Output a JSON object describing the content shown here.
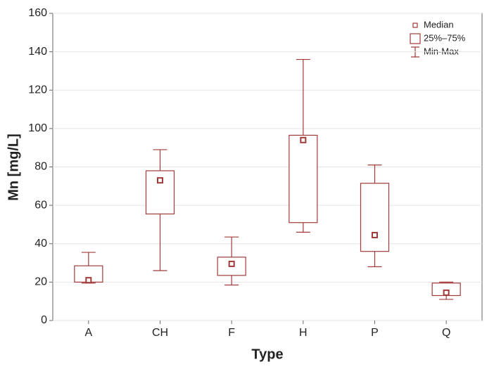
{
  "chart_data": {
    "type": "box",
    "x_label": "Type",
    "y_label": "Mn [mg/L]",
    "categories": [
      "A",
      "CH",
      "F",
      "H",
      "P",
      "Q"
    ],
    "color": "#a23a3a",
    "series": {
      "min": [
        19.5,
        26,
        18.5,
        46,
        28,
        11
      ],
      "q1": [
        20,
        55.5,
        23.5,
        51,
        36,
        13
      ],
      "median": [
        21,
        73,
        29.5,
        94,
        44.5,
        14.5
      ],
      "q3": [
        28.5,
        78,
        33,
        96.5,
        71.5,
        19.5
      ],
      "max": [
        35.5,
        89,
        43.5,
        136,
        81,
        20
      ]
    },
    "ylim": [
      0,
      160
    ],
    "yticks": [
      0,
      20,
      40,
      60,
      80,
      100,
      120,
      140,
      160
    ],
    "grid": true,
    "legend": {
      "position": "upper right",
      "entries": [
        "Median",
        "25%–75%",
        "Min-Max"
      ]
    }
  }
}
